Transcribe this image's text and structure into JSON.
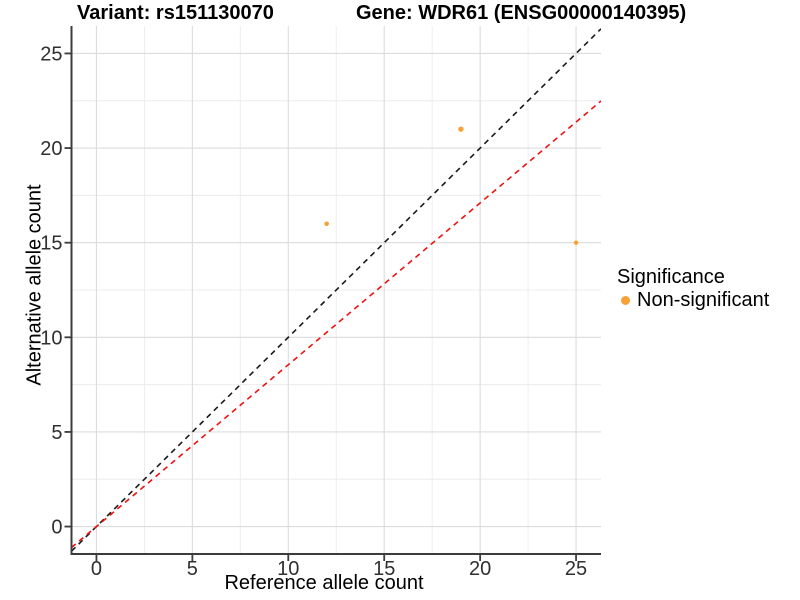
{
  "header": {
    "variant_title": "Variant: rs151130070",
    "gene_title": "Gene: WDR61 (ENSG00000140395)"
  },
  "colors": {
    "background": "#ffffff",
    "point": "#F7A237",
    "identity_line": "#1A1A1A",
    "expected_line": "#EE1111",
    "grid_major": "#DCDCDC",
    "grid_minor": "#ECECEC",
    "axis_line": "#3C3C3C",
    "tick_text": "#303030",
    "title_text": "#000000"
  },
  "legend": {
    "title": "Significance",
    "items": [
      {
        "label": "Non-significant",
        "color": "#F7A237"
      }
    ]
  },
  "chart_data": {
    "type": "scatter",
    "title": "Variant: rs151130070 | Gene: WDR61 (ENSG00000140395)",
    "xlabel": "Reference allele count",
    "ylabel": "Alternative allele count",
    "xlim": [
      -1.3,
      26.3
    ],
    "ylim": [
      -1.45,
      26.45
    ],
    "xticks": [
      0,
      5,
      10,
      15,
      20,
      25
    ],
    "yticks": [
      0,
      5,
      10,
      15,
      20,
      25
    ],
    "xminor": [
      2.5,
      7.5,
      12.5,
      17.5,
      22.5
    ],
    "yminor": [
      2.5,
      7.5,
      12.5,
      17.5,
      22.5
    ],
    "grid": true,
    "legend_position": "right",
    "points": [
      {
        "x": 12,
        "y": 16,
        "r": 2.3,
        "significance": "Non-significant"
      },
      {
        "x": 19,
        "y": 21,
        "r": 2.7,
        "significance": "Non-significant"
      },
      {
        "x": 25,
        "y": 15,
        "r": 2.2,
        "significance": "Non-significant"
      }
    ],
    "lines": [
      {
        "name": "identity-line",
        "slope": 1,
        "intercept": 0,
        "color": "#1A1A1A",
        "style": "dashed"
      },
      {
        "name": "expected-ratio-line",
        "slope": 0.855,
        "intercept": 0,
        "color": "#EE1111",
        "style": "dashed"
      }
    ]
  }
}
